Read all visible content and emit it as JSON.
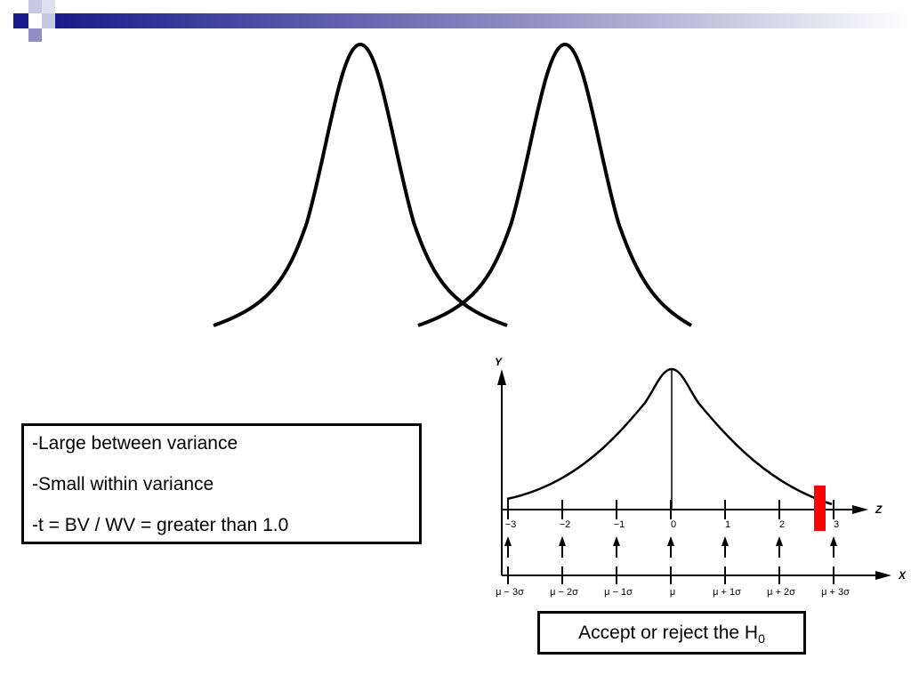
{
  "info_box": {
    "lines": [
      "-Large between variance",
      "-Small within variance",
      "-t = BV / WV = greater than 1.0"
    ]
  },
  "diagram": {
    "y_axis_label": "Y",
    "z_axis_label": "Z",
    "x_axis_label": "X",
    "z_ticks": [
      "−3",
      "−2",
      "−1",
      "0",
      "1",
      "2",
      "3"
    ],
    "x_ticks": [
      "μ − 3σ",
      "μ − 2σ",
      "μ − 1σ",
      "μ",
      "μ + 1σ",
      "μ + 2σ",
      "μ + 3σ"
    ],
    "rejection_marker_color": "#ff0000"
  },
  "caption": {
    "text": "Accept or reject the H",
    "subscript": "0"
  },
  "colors": {
    "header_accent": "#1a1a8c",
    "line": "#000000"
  }
}
